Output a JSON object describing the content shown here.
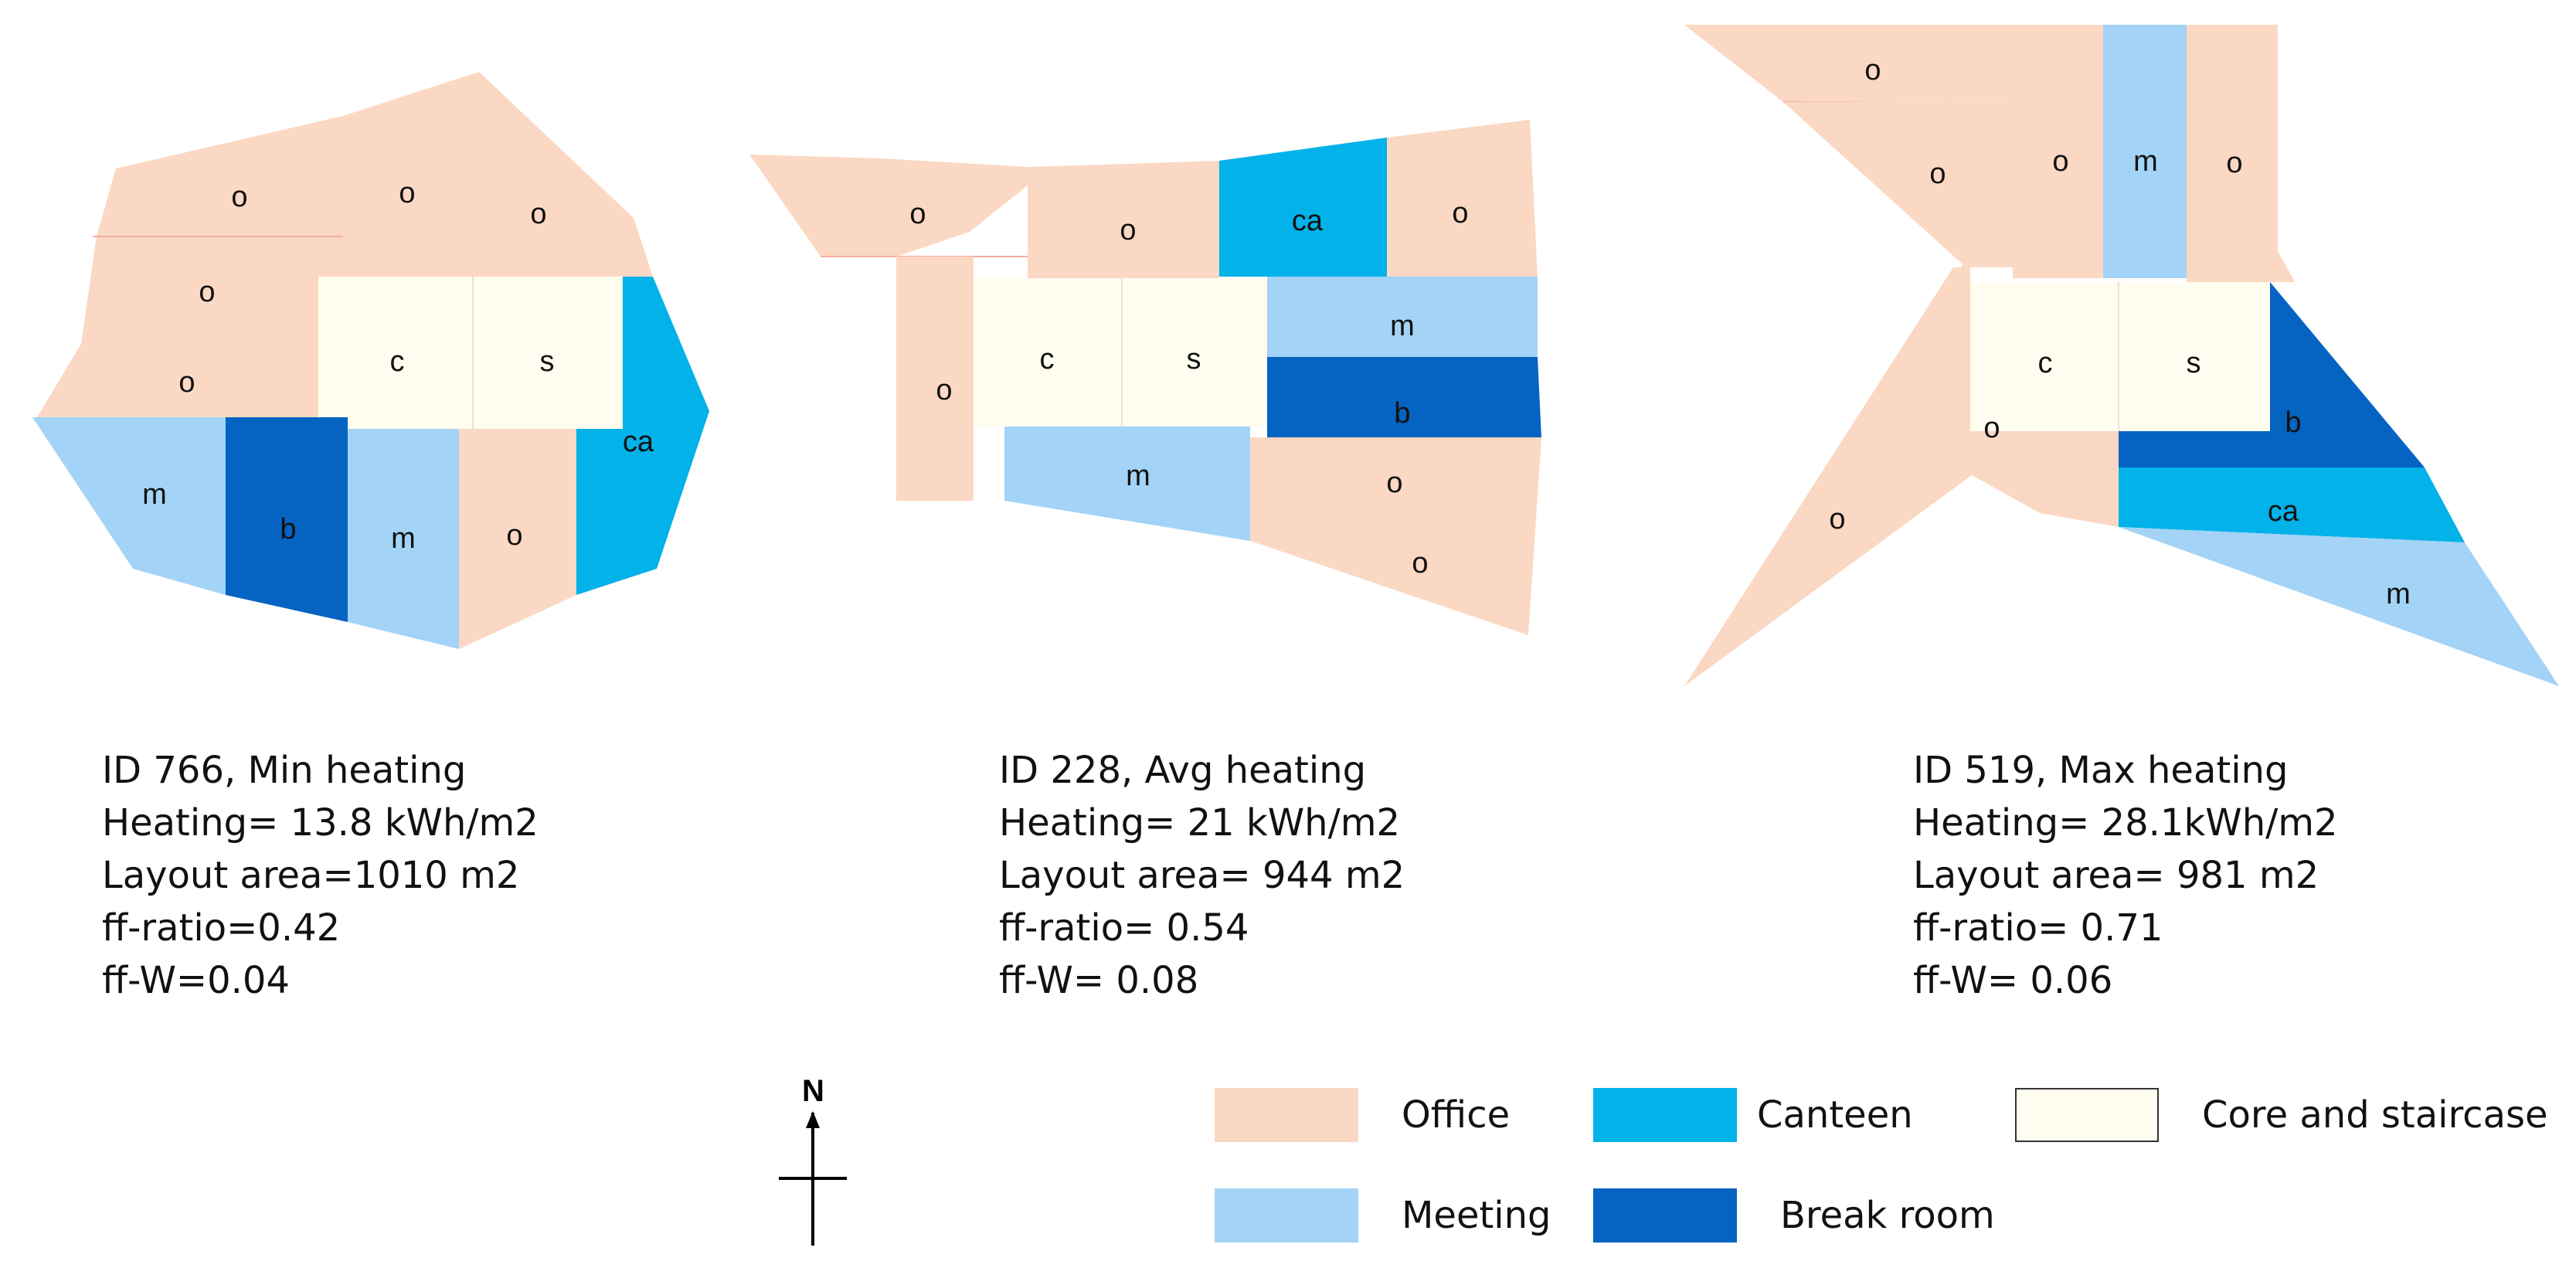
{
  "colors": {
    "office": "#FBD8C3",
    "meeting": "#A3D3F6",
    "canteen": "#02B2E8",
    "break_room": "#0563C1",
    "core": "#FFFDF0"
  },
  "layouts": [
    {
      "id_line": "ID 766, Min heating",
      "heating": "Heating= 13.8 kWh/m2",
      "area": "Layout area=1010 m2",
      "ff_ratio": "ff-ratio=0.42",
      "ff_w": "ff-W=0.04",
      "rooms": [
        "o",
        "o",
        "o",
        "o",
        "o",
        "c",
        "s",
        "ca",
        "m",
        "b",
        "m",
        "o"
      ]
    },
    {
      "id_line": "ID 228, Avg heating",
      "heating": "Heating= 21 kWh/m2",
      "area": "Layout area= 944 m2",
      "ff_ratio": "ff-ratio= 0.54",
      "ff_w": "ff-W= 0.08",
      "rooms": [
        "o",
        "o",
        "ca",
        "o",
        "o",
        "c",
        "s",
        "m",
        "b",
        "m",
        "o",
        "o"
      ]
    },
    {
      "id_line": "ID 519, Max heating",
      "heating": "Heating= 28.1kWh/m2",
      "area": "Layout area= 981 m2",
      "ff_ratio": "ff-ratio= 0.71",
      "ff_w": "ff-W= 0.06",
      "rooms": [
        "o",
        "o",
        "o",
        "m",
        "o",
        "c",
        "s",
        "b",
        "o",
        "ca",
        "o",
        "m"
      ]
    }
  ],
  "legend": {
    "office": "Office",
    "canteen": "Canteen",
    "core": "Core and staircase",
    "meeting": "Meeting",
    "break_room": "Break room"
  },
  "compass": {
    "north_label": "N",
    "icon": "north-arrow-icon"
  }
}
